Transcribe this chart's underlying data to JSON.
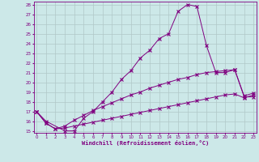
{
  "xlabel": "Windchill (Refroidissement éolien,°C)",
  "s1_x": [
    0,
    1,
    3,
    4,
    5,
    6,
    7,
    8,
    9,
    10,
    11,
    12,
    13,
    14,
    15,
    16,
    17,
    18,
    19,
    20,
    21,
    22,
    23
  ],
  "s1_y": [
    17.0,
    16.0,
    15.0,
    15.0,
    16.3,
    17.0,
    18.0,
    19.0,
    20.3,
    21.2,
    22.5,
    23.3,
    24.5,
    25.0,
    27.3,
    28.0,
    27.8,
    23.8,
    21.0,
    21.0,
    21.3,
    18.5,
    18.5
  ],
  "s2_x": [
    0,
    1,
    2,
    3,
    4,
    5,
    6,
    7,
    8,
    9,
    10,
    11,
    12,
    13,
    14,
    15,
    16,
    17,
    18,
    19,
    20,
    21,
    22,
    23
  ],
  "s2_y": [
    17.0,
    15.8,
    15.2,
    15.3,
    15.5,
    15.7,
    15.9,
    16.1,
    16.3,
    16.5,
    16.7,
    16.9,
    17.1,
    17.3,
    17.5,
    17.7,
    17.9,
    18.1,
    18.3,
    18.5,
    18.7,
    18.8,
    18.4,
    18.7
  ],
  "s3_x": [
    0,
    1,
    2,
    3,
    4,
    5,
    6,
    7,
    8,
    9,
    10,
    11,
    12,
    13,
    14,
    15,
    16,
    17,
    18,
    19,
    20,
    21,
    22,
    23
  ],
  "s3_y": [
    17.0,
    15.8,
    15.2,
    15.5,
    16.1,
    16.6,
    17.1,
    17.5,
    17.9,
    18.3,
    18.7,
    19.0,
    19.4,
    19.7,
    20.0,
    20.3,
    20.5,
    20.8,
    21.0,
    21.1,
    21.2,
    21.3,
    18.6,
    18.9
  ],
  "ylim": [
    15,
    28
  ],
  "xlim": [
    0,
    23
  ],
  "yticks": [
    15,
    16,
    17,
    18,
    19,
    20,
    21,
    22,
    23,
    24,
    25,
    26,
    27,
    28
  ],
  "xticks": [
    0,
    1,
    2,
    3,
    4,
    5,
    6,
    7,
    8,
    9,
    10,
    11,
    12,
    13,
    14,
    15,
    16,
    17,
    18,
    19,
    20,
    21,
    22,
    23
  ],
  "line_color": "#800080",
  "bg_color": "#cce8e8",
  "grid_color": "#b0c8c8"
}
